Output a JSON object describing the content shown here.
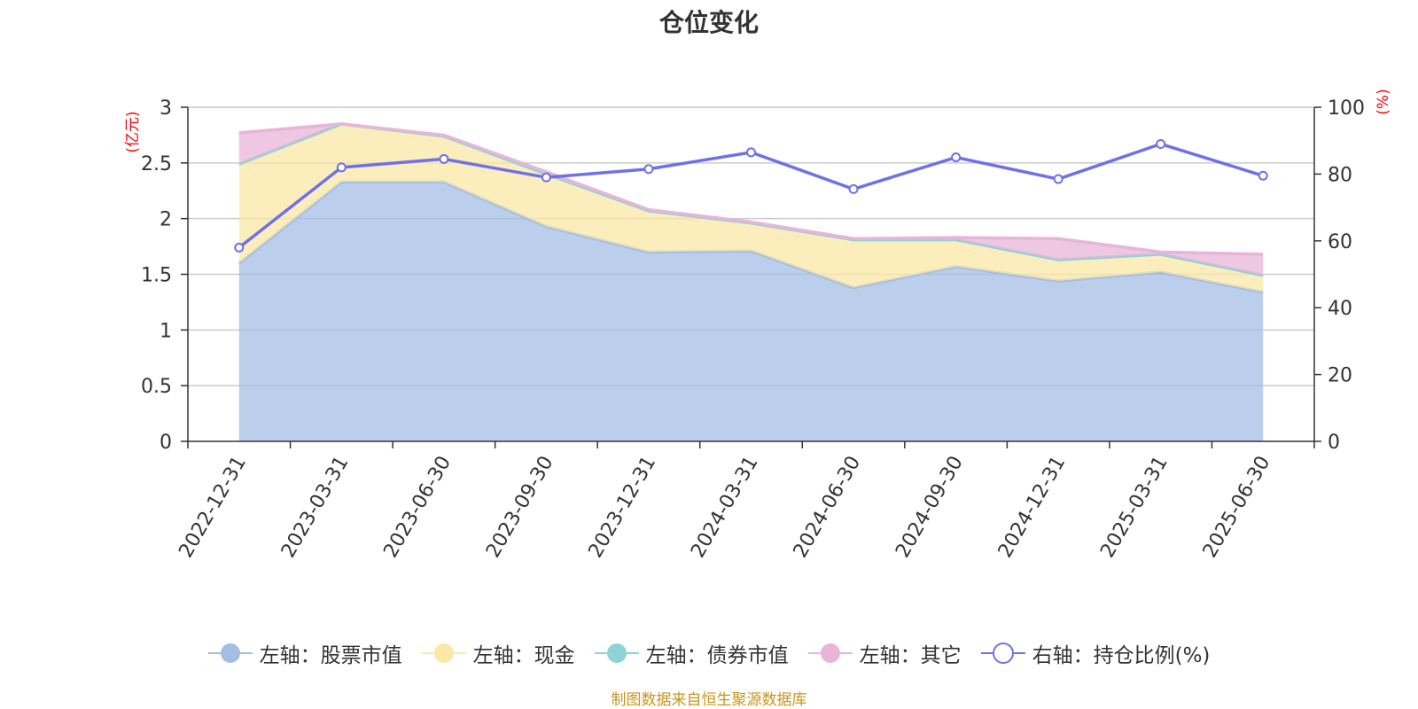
{
  "title": "仓位变化",
  "source_note": "制图数据来自恒生聚源数据库",
  "chart_data": {
    "type": "area",
    "categories": [
      "2022-12-31",
      "2023-03-31",
      "2023-06-30",
      "2023-09-30",
      "2023-12-31",
      "2024-03-31",
      "2024-06-30",
      "2024-09-30",
      "2024-12-31",
      "2025-03-31",
      "2025-06-30"
    ],
    "left_axis": {
      "unit": "(亿元)",
      "ylim": [
        0,
        3
      ],
      "ticks": [
        "0",
        "0.5",
        "1",
        "1.5",
        "2",
        "2.5",
        "3"
      ]
    },
    "right_axis": {
      "unit": "(%)",
      "ylim": [
        0,
        100
      ],
      "ticks": [
        "0",
        "20",
        "40",
        "60",
        "80",
        "100"
      ]
    },
    "grid": true,
    "legend_position": "bottom",
    "series": [
      {
        "name": "左轴：股票市值",
        "axis": "left",
        "color": "#a4bde5",
        "stack": true,
        "values": [
          1.6,
          2.33,
          2.33,
          1.93,
          1.7,
          1.71,
          1.38,
          1.57,
          1.44,
          1.52,
          1.34
        ]
      },
      {
        "name": "左轴：现金",
        "axis": "left",
        "color": "#f9e8a6",
        "stack": true,
        "values": [
          0.89,
          0.52,
          0.41,
          0.47,
          0.37,
          0.25,
          0.43,
          0.24,
          0.19,
          0.16,
          0.15
        ]
      },
      {
        "name": "左轴：债券市值",
        "axis": "left",
        "color": "#8fd3d8",
        "stack": true,
        "values": [
          0,
          0,
          0,
          0,
          0,
          0,
          0,
          0,
          0,
          0,
          0
        ]
      },
      {
        "name": "左轴：其它",
        "axis": "left",
        "color": "#e8b4d8",
        "stack": true,
        "values": [
          0.28,
          0.0,
          0.01,
          0.02,
          0.01,
          0.01,
          0.01,
          0.02,
          0.19,
          0.02,
          0.19
        ]
      },
      {
        "name": "右轴：持仓比例(%)",
        "axis": "right",
        "type": "line",
        "color": "#7070e8",
        "values": [
          58,
          82,
          84.5,
          79,
          81.5,
          86.5,
          75.5,
          85,
          78.5,
          89,
          79.5
        ]
      }
    ]
  }
}
